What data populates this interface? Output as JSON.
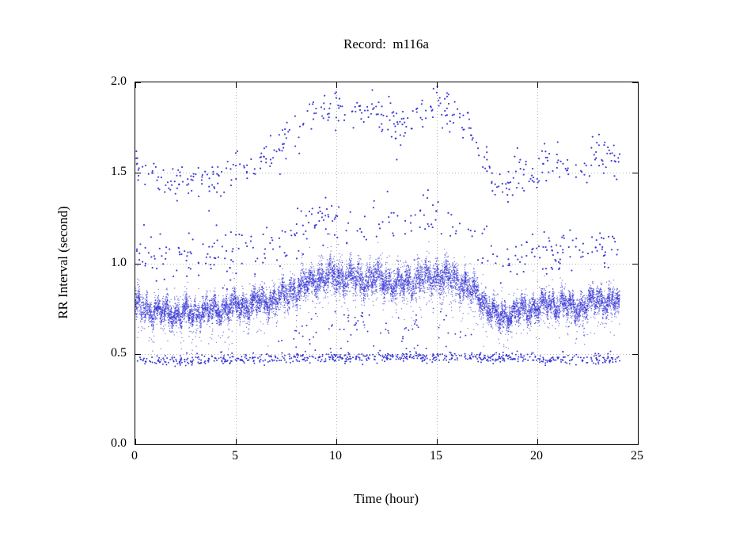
{
  "figure": {
    "background": "#ffffff"
  },
  "chart_data": {
    "type": "scatter",
    "title": "Record:  m116a",
    "xlabel": "Time (hour)",
    "ylabel": "RR Interval (second)",
    "xlim": [
      0,
      25
    ],
    "ylim": [
      0.0,
      2.0
    ],
    "xticks": [
      0,
      5,
      10,
      15,
      20,
      25
    ],
    "xtick_labels": [
      "0",
      "5",
      "10",
      "15",
      "20",
      "25"
    ],
    "yticks": [
      0.0,
      0.5,
      1.0,
      1.5,
      2.0
    ],
    "ytick_labels": [
      "0.0",
      "0.5",
      "1.0",
      "1.5",
      "2.0"
    ],
    "grid": true,
    "grid_color": "#b4b4b4",
    "axis_color": "#000000",
    "point_color": "#2f2fd3",
    "data_x_range": [
      0,
      24.1
    ],
    "baseline": {
      "x": [
        0,
        1,
        2,
        3,
        4,
        5,
        6,
        7,
        8,
        9,
        10,
        11,
        12,
        13,
        14,
        15,
        16,
        17,
        18,
        19,
        20,
        21,
        22,
        23,
        24.1
      ],
      "y": [
        0.76,
        0.74,
        0.72,
        0.73,
        0.74,
        0.76,
        0.78,
        0.8,
        0.86,
        0.91,
        0.93,
        0.91,
        0.92,
        0.88,
        0.91,
        0.93,
        0.91,
        0.83,
        0.7,
        0.73,
        0.76,
        0.78,
        0.75,
        0.8,
        0.78
      ]
    },
    "series": [
      {
        "name": "rr-main-band",
        "kind": "dense-band",
        "n_points": 12000,
        "jitter": 0.032,
        "wiggle_amp": 0.05,
        "low_tail_prob": 0.03,
        "marker_radius": 0.7,
        "alpha": 0.6
      },
      {
        "name": "rr-double-outliers",
        "kind": "scaled-band",
        "scale": 2.0,
        "n_points": 430,
        "spread": 0.055,
        "y_max": 1.98,
        "marker_radius": 1.1,
        "alpha": 0.9
      },
      {
        "name": "rr-mid-outliers",
        "kind": "offset-band",
        "offset": 0.31,
        "n_points": 390,
        "spread": 0.07,
        "thin_from": 10,
        "thin_to": 18,
        "thin_keep": 0.55,
        "marker_radius": 1.1,
        "alpha": 0.9
      },
      {
        "name": "rr-low-band",
        "kind": "independent-band",
        "n_points": 660,
        "baseline_x": [
          0,
          6,
          12,
          18,
          24.1
        ],
        "baseline_y": [
          0.46,
          0.47,
          0.485,
          0.48,
          0.465
        ],
        "spread": 0.013,
        "outlier_prob": 0.06,
        "outlier_spread": 0.045,
        "marker_radius": 1.0,
        "alpha": 0.9
      },
      {
        "name": "rr-below-band-outliers",
        "kind": "offset-band",
        "offset": -0.27,
        "n_points": 80,
        "spread": 0.05,
        "min_base": 0.8,
        "marker_radius": 1.0,
        "alpha": 0.9
      }
    ]
  }
}
